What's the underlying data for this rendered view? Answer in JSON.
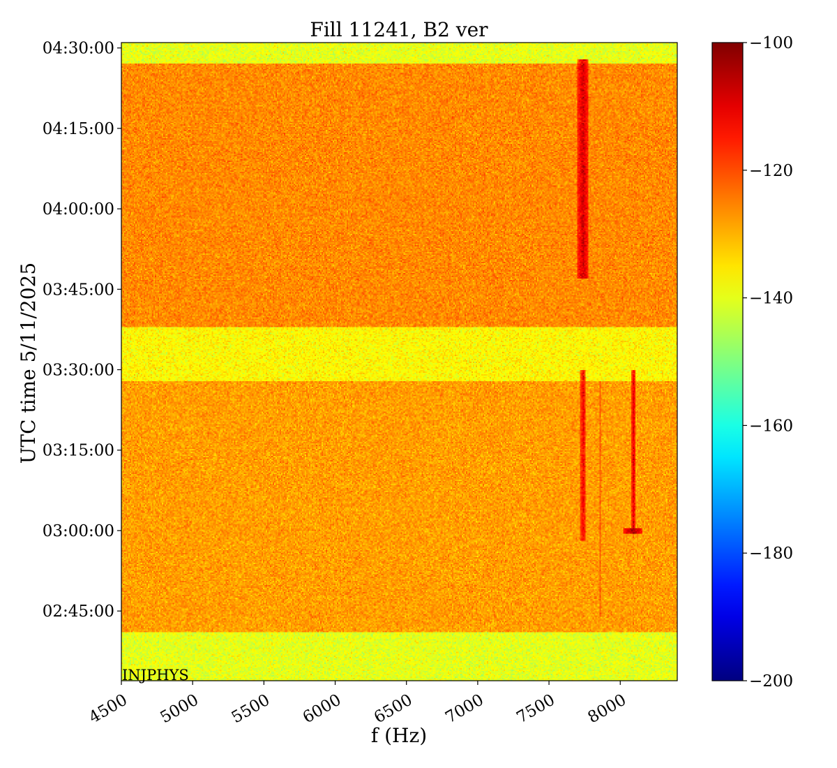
{
  "chart_data": {
    "type": "heatmap",
    "title": "Fill 11241, B2 ver",
    "xlabel": "f (Hz)",
    "ylabel": "UTC time 5/11/2025",
    "xlim": [
      4500,
      8400
    ],
    "x_ticks": [
      4500,
      5000,
      5500,
      6000,
      6500,
      7000,
      7500,
      8000
    ],
    "x_tick_labels": [
      "4500",
      "5000",
      "5500",
      "6000",
      "6500",
      "7000",
      "7500",
      "8000"
    ],
    "ylim": [
      "02:32:00",
      "04:31:00"
    ],
    "y_tick_labels": [
      "02:45:00",
      "03:00:00",
      "03:15:00",
      "03:30:00",
      "03:45:00",
      "04:00:00",
      "04:15:00",
      "04:30:00"
    ],
    "colorbar": {
      "colormap": "jet",
      "vmin": -200,
      "vmax": -100,
      "ticks": [
        -100,
        -120,
        -140,
        -160,
        -180,
        -200
      ],
      "tick_labels": [
        "−100",
        "−120",
        "−140",
        "−160",
        "−180",
        "−200"
      ]
    },
    "annotation": "INJPHYS",
    "background_levels": [
      {
        "from": "02:32:00",
        "to": "02:41:00",
        "level_db": -140
      },
      {
        "from": "02:41:00",
        "to": "03:28:00",
        "level_db": -128
      },
      {
        "from": "03:28:00",
        "to": "03:38:00",
        "level_db": -137
      },
      {
        "from": "03:38:00",
        "to": "04:27:00",
        "level_db": -126
      },
      {
        "from": "04:27:00",
        "to": "04:31:00",
        "level_db": -140
      }
    ],
    "features": [
      {
        "f_start": 7700,
        "f_end": 7780,
        "t_start": "03:47:00",
        "t_end": "04:28:00",
        "level_db": -108
      },
      {
        "f_start": 7720,
        "f_end": 7760,
        "t_start": "02:58:00",
        "t_end": "03:30:00",
        "level_db": -112
      },
      {
        "f_start": 7850,
        "f_end": 7860,
        "t_start": "02:44:00",
        "t_end": "03:28:00",
        "level_db": -118
      },
      {
        "f_start": 8080,
        "f_end": 8110,
        "t_start": "03:00:00",
        "t_end": "03:30:00",
        "level_db": -110
      },
      {
        "f_start": 8020,
        "f_end": 8160,
        "t_start": "02:59:30",
        "t_end": "03:00:30",
        "level_db": -104
      }
    ]
  }
}
